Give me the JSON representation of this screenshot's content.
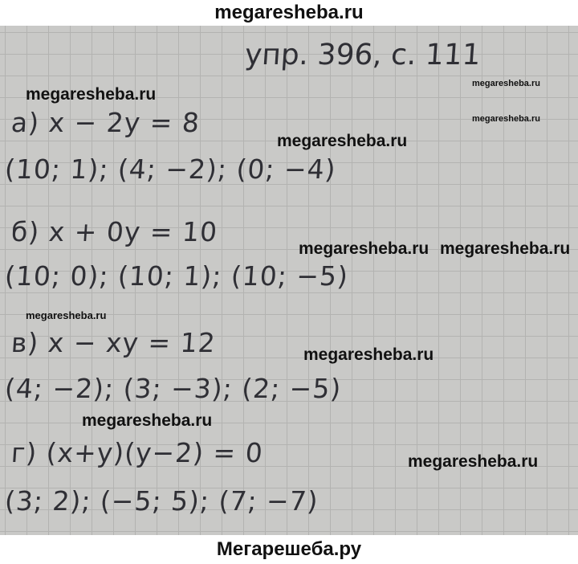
{
  "header": {
    "site": "megaresheba.ru"
  },
  "footer": {
    "site": "Мегарешеба.ру"
  },
  "page": {
    "title": "упр. 396, с. 111",
    "parts": [
      {
        "equation": "а)  x − 2y = 8",
        "answers": "(10; 1); (4; −2); (0; −4)"
      },
      {
        "equation": "б)  x + 0y = 10",
        "answers": "(10; 0); (10; 1); (10; −5)"
      },
      {
        "equation": "в)  x − xy = 12",
        "answers": "(4; −2); (3; −3); (2; −5)"
      },
      {
        "equation": "г)  (x+y)(y−2) = 0",
        "answers": "(3; 2); (−5; 5); (7; −7)"
      }
    ]
  },
  "watermark": "megaresheba.ru"
}
